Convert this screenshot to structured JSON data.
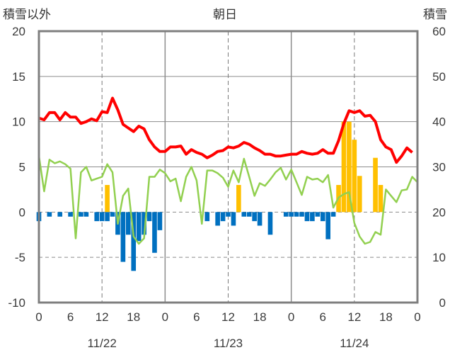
{
  "chart_data": {
    "type": "bar+line",
    "title": "朝日",
    "left_axis_label": "積雪以外",
    "right_axis_label": "積雪",
    "ylim_left": [
      -10,
      20
    ],
    "ylim_right": [
      0,
      60
    ],
    "yticks_left": [
      "20",
      "15",
      "10",
      "5",
      "0",
      "-5",
      "-10"
    ],
    "yticks_right": [
      "60",
      "50",
      "40",
      "30",
      "20",
      "10",
      "0"
    ],
    "x_hours": [
      0,
      72
    ],
    "xtick_labels": [
      "0",
      "6",
      "12",
      "18",
      "0",
      "6",
      "12",
      "18",
      "0",
      "6",
      "12",
      "18",
      "0"
    ],
    "day_labels": [
      "11/22",
      "11/23",
      "11/24"
    ],
    "grid": {
      "solid_x_hours": [
        24,
        48
      ],
      "dashed_x_hours": [
        12,
        36,
        60
      ],
      "solid_y": [
        5,
        10,
        15
      ],
      "dashed_y": [
        0,
        -5
      ]
    },
    "colors": {
      "red_line": "#ff0000",
      "green_line": "#92d050",
      "blue_bar": "#0070c0",
      "yellow_bar": "#ffc000",
      "purple_line": "#7030a0",
      "frame": "#7f7f7f"
    },
    "red_line": [
      [
        0,
        10.4
      ],
      [
        1,
        10.2
      ],
      [
        2,
        11
      ],
      [
        3,
        11
      ],
      [
        4,
        10.2
      ],
      [
        5,
        11
      ],
      [
        6,
        10.5
      ],
      [
        7,
        10.5
      ],
      [
        8,
        9.8
      ],
      [
        9,
        10
      ],
      [
        10,
        10.3
      ],
      [
        11,
        10.1
      ],
      [
        12,
        11.1
      ],
      [
        13,
        11
      ],
      [
        14,
        12.6
      ],
      [
        15,
        11.3
      ],
      [
        16,
        9.7
      ],
      [
        17,
        9.3
      ],
      [
        18,
        8.9
      ],
      [
        19,
        9.5
      ],
      [
        20,
        9.2
      ],
      [
        21,
        8
      ],
      [
        22,
        7.2
      ],
      [
        23,
        6.7
      ],
      [
        24,
        6.7
      ],
      [
        25,
        7.2
      ],
      [
        26,
        7.2
      ],
      [
        27,
        7.3
      ],
      [
        28,
        6.4
      ],
      [
        29,
        6.9
      ],
      [
        30,
        6.6
      ],
      [
        31,
        6.4
      ],
      [
        32,
        6
      ],
      [
        33,
        6.3
      ],
      [
        34,
        6.7
      ],
      [
        35,
        6.8
      ],
      [
        36,
        7.2
      ],
      [
        37,
        7.1
      ],
      [
        38,
        7.3
      ],
      [
        39,
        7.7
      ],
      [
        40,
        7.5
      ],
      [
        41,
        7.1
      ],
      [
        42,
        6.8
      ],
      [
        43,
        6.4
      ],
      [
        44,
        6.4
      ],
      [
        45,
        6.2
      ],
      [
        46,
        6.2
      ],
      [
        47,
        6.3
      ],
      [
        48,
        6.4
      ],
      [
        49,
        6.4
      ],
      [
        50,
        6.7
      ],
      [
        51,
        6.5
      ],
      [
        52,
        6.4
      ],
      [
        53,
        6.5
      ],
      [
        54,
        6.9
      ],
      [
        55,
        6.5
      ],
      [
        56,
        6.5
      ],
      [
        57,
        7.9
      ],
      [
        58,
        9.8
      ],
      [
        59,
        11.2
      ],
      [
        60,
        11
      ],
      [
        61,
        11.2
      ],
      [
        62,
        10.6
      ],
      [
        63,
        10.7
      ],
      [
        64,
        10
      ],
      [
        65,
        8
      ],
      [
        66,
        7.2
      ],
      [
        67,
        6.9
      ],
      [
        68,
        5.5
      ],
      [
        69,
        6.2
      ],
      [
        70,
        7.1
      ],
      [
        71,
        6.6
      ]
    ],
    "green_line": [
      [
        0,
        6.2
      ],
      [
        1,
        2.3
      ],
      [
        2,
        5.8
      ],
      [
        3,
        5.4
      ],
      [
        4,
        5.6
      ],
      [
        5,
        5.3
      ],
      [
        6,
        4.8
      ],
      [
        7,
        -2.9
      ],
      [
        8,
        4.4
      ],
      [
        9,
        5
      ],
      [
        10,
        3.5
      ],
      [
        11,
        3.7
      ],
      [
        12,
        3.9
      ],
      [
        13,
        5.3
      ],
      [
        14,
        4.4
      ],
      [
        15,
        -1.3
      ],
      [
        16,
        1.8
      ],
      [
        17,
        2.6
      ],
      [
        18,
        -2.7
      ],
      [
        19,
        -3.5
      ],
      [
        20,
        -2.9
      ],
      [
        21,
        3.9
      ],
      [
        22,
        3.9
      ],
      [
        23,
        4.7
      ],
      [
        24,
        4.3
      ],
      [
        25,
        3.4
      ],
      [
        26,
        3.7
      ],
      [
        27,
        1.2
      ],
      [
        28,
        3.9
      ],
      [
        29,
        5
      ],
      [
        30,
        3.5
      ],
      [
        31,
        -1.3
      ],
      [
        32,
        4.6
      ],
      [
        33,
        4.6
      ],
      [
        34,
        4.3
      ],
      [
        35,
        3.8
      ],
      [
        36,
        2.8
      ],
      [
        37,
        4.6
      ],
      [
        38,
        3.3
      ],
      [
        39,
        5.9
      ],
      [
        40,
        3.9
      ],
      [
        41,
        1.8
      ],
      [
        42,
        3.2
      ],
      [
        43,
        2.9
      ],
      [
        44,
        3.6
      ],
      [
        45,
        4.4
      ],
      [
        46,
        4.9
      ],
      [
        47,
        3.6
      ],
      [
        48,
        4.7
      ],
      [
        49,
        3.3
      ],
      [
        50,
        1.9
      ],
      [
        51,
        3.9
      ],
      [
        52,
        3.6
      ],
      [
        53,
        3.7
      ],
      [
        54,
        3.3
      ],
      [
        55,
        4.1
      ],
      [
        56,
        0.5
      ],
      [
        57,
        1.6
      ],
      [
        58,
        2
      ],
      [
        59,
        2.2
      ],
      [
        60,
        -1.2
      ],
      [
        61,
        -2.7
      ],
      [
        62,
        -3.5
      ],
      [
        63,
        -3.3
      ],
      [
        64,
        -2.2
      ],
      [
        65,
        -2.5
      ],
      [
        66,
        2.5
      ],
      [
        67,
        1.8
      ],
      [
        68,
        1.1
      ],
      [
        69,
        2.4
      ],
      [
        70,
        2.5
      ],
      [
        71,
        3.9
      ],
      [
        72,
        3.3
      ]
    ],
    "blue_bars": [
      [
        0,
        -1
      ],
      [
        2,
        -0.5
      ],
      [
        4,
        -0.5
      ],
      [
        6,
        -0.5
      ],
      [
        8,
        -0.5
      ],
      [
        9,
        -0.5
      ],
      [
        11,
        -1
      ],
      [
        12,
        -1
      ],
      [
        13,
        -1
      ],
      [
        14,
        -0.5
      ],
      [
        15,
        -2.5
      ],
      [
        16,
        -5.5
      ],
      [
        17,
        -2.5
      ],
      [
        18,
        -6.5
      ],
      [
        19,
        -3.2
      ],
      [
        20,
        -2.5
      ],
      [
        21,
        -1
      ],
      [
        22,
        -4.5
      ],
      [
        23,
        -2
      ],
      [
        32,
        -1
      ],
      [
        34,
        -1.5
      ],
      [
        35,
        -1
      ],
      [
        36,
        -0.5
      ],
      [
        37,
        -1.5
      ],
      [
        39,
        -0.5
      ],
      [
        40,
        -0.5
      ],
      [
        41,
        -1
      ],
      [
        42,
        -1.5
      ],
      [
        44,
        -2.5
      ],
      [
        47,
        -0.5
      ],
      [
        48,
        -0.5
      ],
      [
        49,
        -0.5
      ],
      [
        50,
        -0.5
      ],
      [
        51,
        -1
      ],
      [
        52,
        -1
      ],
      [
        53,
        -0.5
      ],
      [
        54,
        -1
      ],
      [
        55,
        -3
      ],
      [
        56,
        -0.5
      ]
    ],
    "yellow_bars": [
      [
        13,
        3
      ],
      [
        38,
        3
      ],
      [
        57,
        3
      ],
      [
        58,
        10
      ],
      [
        59,
        10
      ],
      [
        60,
        8
      ],
      [
        61,
        4
      ],
      [
        64,
        6
      ],
      [
        65,
        3
      ]
    ],
    "purple_line": [
      [
        0,
        -10
      ],
      [
        72,
        -10
      ]
    ]
  }
}
